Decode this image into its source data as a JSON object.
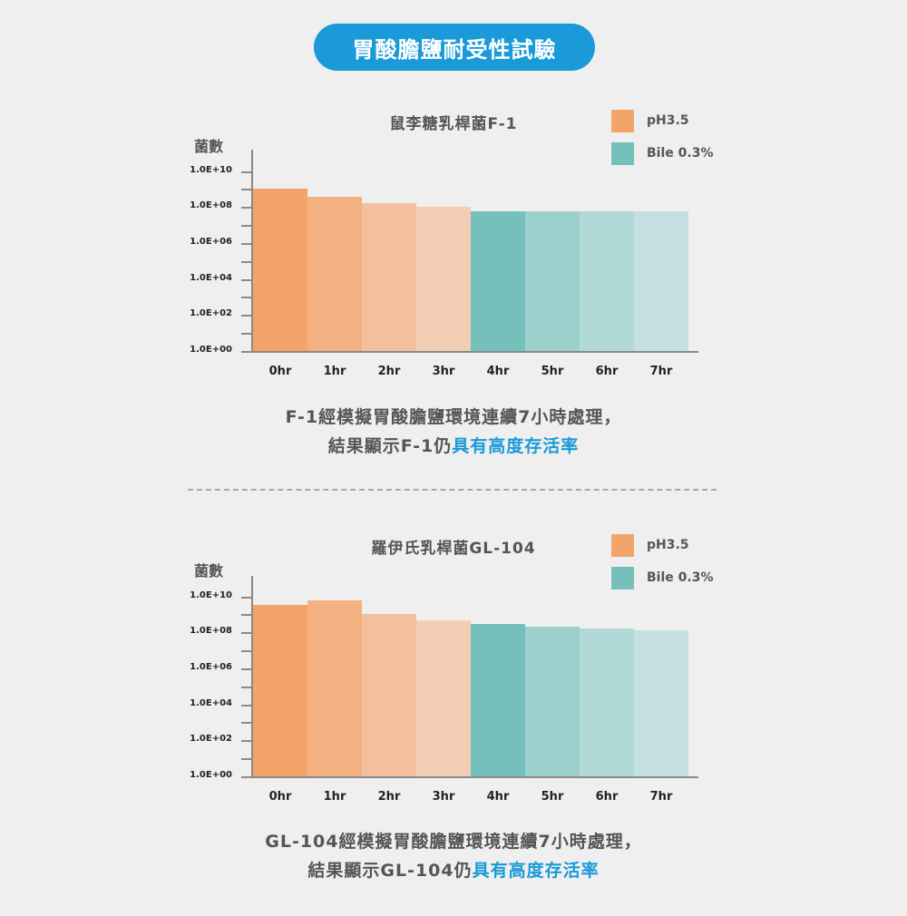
{
  "header": {
    "title": "胃酸膽鹽耐受性試驗"
  },
  "legend": [
    {
      "label": "pH3.5",
      "color": "#F3A468"
    },
    {
      "label": "Bile 0.3%",
      "color": "#76C0BB"
    }
  ],
  "charts": [
    {
      "title": "鼠李糖乳桿菌F-1",
      "ylabel": "菌數",
      "yticks": [
        "1.0E+10",
        "1.0E+08",
        "1.0E+06",
        "1.0E+04",
        "1.0E+02",
        "1.0E+00"
      ],
      "xticks": [
        "0hr",
        "1hr",
        "2hr",
        "3hr",
        "4hr",
        "5hr",
        "6hr",
        "7hr"
      ],
      "caption": {
        "line1": "F-1經模擬胃酸膽鹽環境連續7小時處理，",
        "line2_prefix": "結果顯示F-1仍",
        "line2_highlight": "具有高度存活率"
      }
    },
    {
      "title": "羅伊氏乳桿菌GL-104",
      "ylabel": "菌數",
      "yticks": [
        "1.0E+10",
        "1.0E+08",
        "1.0E+06",
        "1.0E+04",
        "1.0E+02",
        "1.0E+00"
      ],
      "xticks": [
        "0hr",
        "1hr",
        "2hr",
        "3hr",
        "4hr",
        "5hr",
        "6hr",
        "7hr"
      ],
      "caption": {
        "line1": "GL-104經模擬胃酸膽鹽環境連續7小時處理，",
        "line2_prefix": "結果顯示GL-104仍",
        "line2_highlight": "具有高度存活率"
      }
    }
  ],
  "bar_colors": [
    "#F3A468",
    "#F3B181",
    "#F2C09C",
    "#F2CEB4",
    "#76C0BB",
    "#9CD0CC",
    "#B1D9D7",
    "#C4DFDF"
  ],
  "chart_data": [
    {
      "type": "bar",
      "title": "鼠李糖乳桿菌F-1",
      "xlabel": "",
      "ylabel": "菌數",
      "yscale": "log",
      "ylim": [
        1,
        10000000000
      ],
      "categories": [
        "0hr",
        "1hr",
        "2hr",
        "3hr",
        "4hr",
        "5hr",
        "6hr",
        "7hr"
      ],
      "series": [
        {
          "name": "pH3.5",
          "values": [
            1000000000.0,
            350000000.0,
            170000000.0,
            110000000.0,
            null,
            null,
            null,
            null
          ]
        },
        {
          "name": "Bile 0.3%",
          "values": [
            null,
            null,
            null,
            null,
            60000000.0,
            60000000.0,
            60000000.0,
            60000000.0
          ]
        }
      ],
      "log10_values": [
        9.0,
        8.54,
        8.23,
        8.03,
        7.78,
        7.78,
        7.78,
        7.78
      ],
      "legend_position": "top-right",
      "grid": false
    },
    {
      "type": "bar",
      "title": "羅伊氏乳桿菌GL-104",
      "xlabel": "",
      "ylabel": "菌數",
      "yscale": "log",
      "ylim": [
        1,
        10000000000
      ],
      "categories": [
        "0hr",
        "1hr",
        "2hr",
        "3hr",
        "4hr",
        "5hr",
        "6hr",
        "7hr"
      ],
      "series": [
        {
          "name": "pH3.5",
          "values": [
            3200000000.0,
            5600000000.0,
            1000000000.0,
            490000000.0,
            null,
            null,
            null,
            null
          ]
        },
        {
          "name": "Bile 0.3%",
          "values": [
            null,
            null,
            null,
            null,
            280000000.0,
            190000000.0,
            150000000.0,
            120000000.0
          ]
        }
      ],
      "log10_values": [
        9.5,
        9.75,
        9.0,
        8.69,
        8.44,
        8.29,
        8.19,
        8.09
      ],
      "legend_position": "top-right",
      "grid": false
    }
  ]
}
